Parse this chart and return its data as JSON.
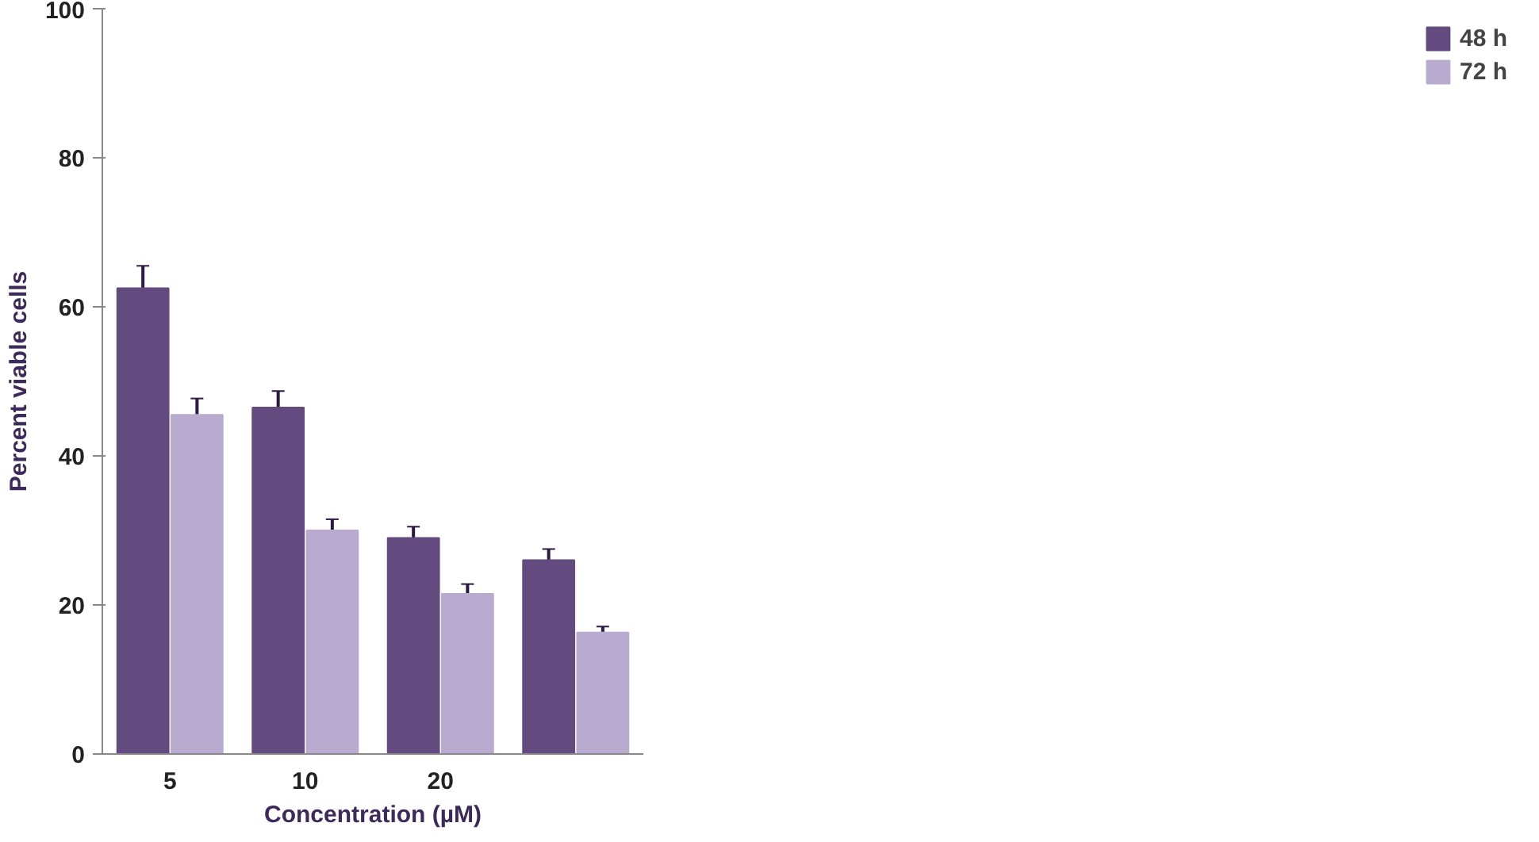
{
  "chart_data": {
    "type": "bar",
    "xlabel": "Concentration (µM)",
    "ylabel": "Percent viable cells",
    "categories": [
      "5",
      "10",
      "20",
      null
    ],
    "series": [
      {
        "name": "48 h",
        "color": "#634a7f",
        "values": [
          62.5,
          46.5,
          29,
          26
        ],
        "errors": [
          3,
          2.2,
          1.5,
          1.5
        ]
      },
      {
        "name": "72 h",
        "color": "#b8abcf",
        "values": [
          45.5,
          30,
          21.5,
          16.3
        ],
        "errors": [
          2.2,
          1.5,
          1.3,
          0.8
        ]
      }
    ],
    "ylim": [
      0,
      100
    ],
    "yticks": [
      0,
      20,
      40,
      60,
      80,
      100
    ],
    "grid": false,
    "legend": "right"
  }
}
